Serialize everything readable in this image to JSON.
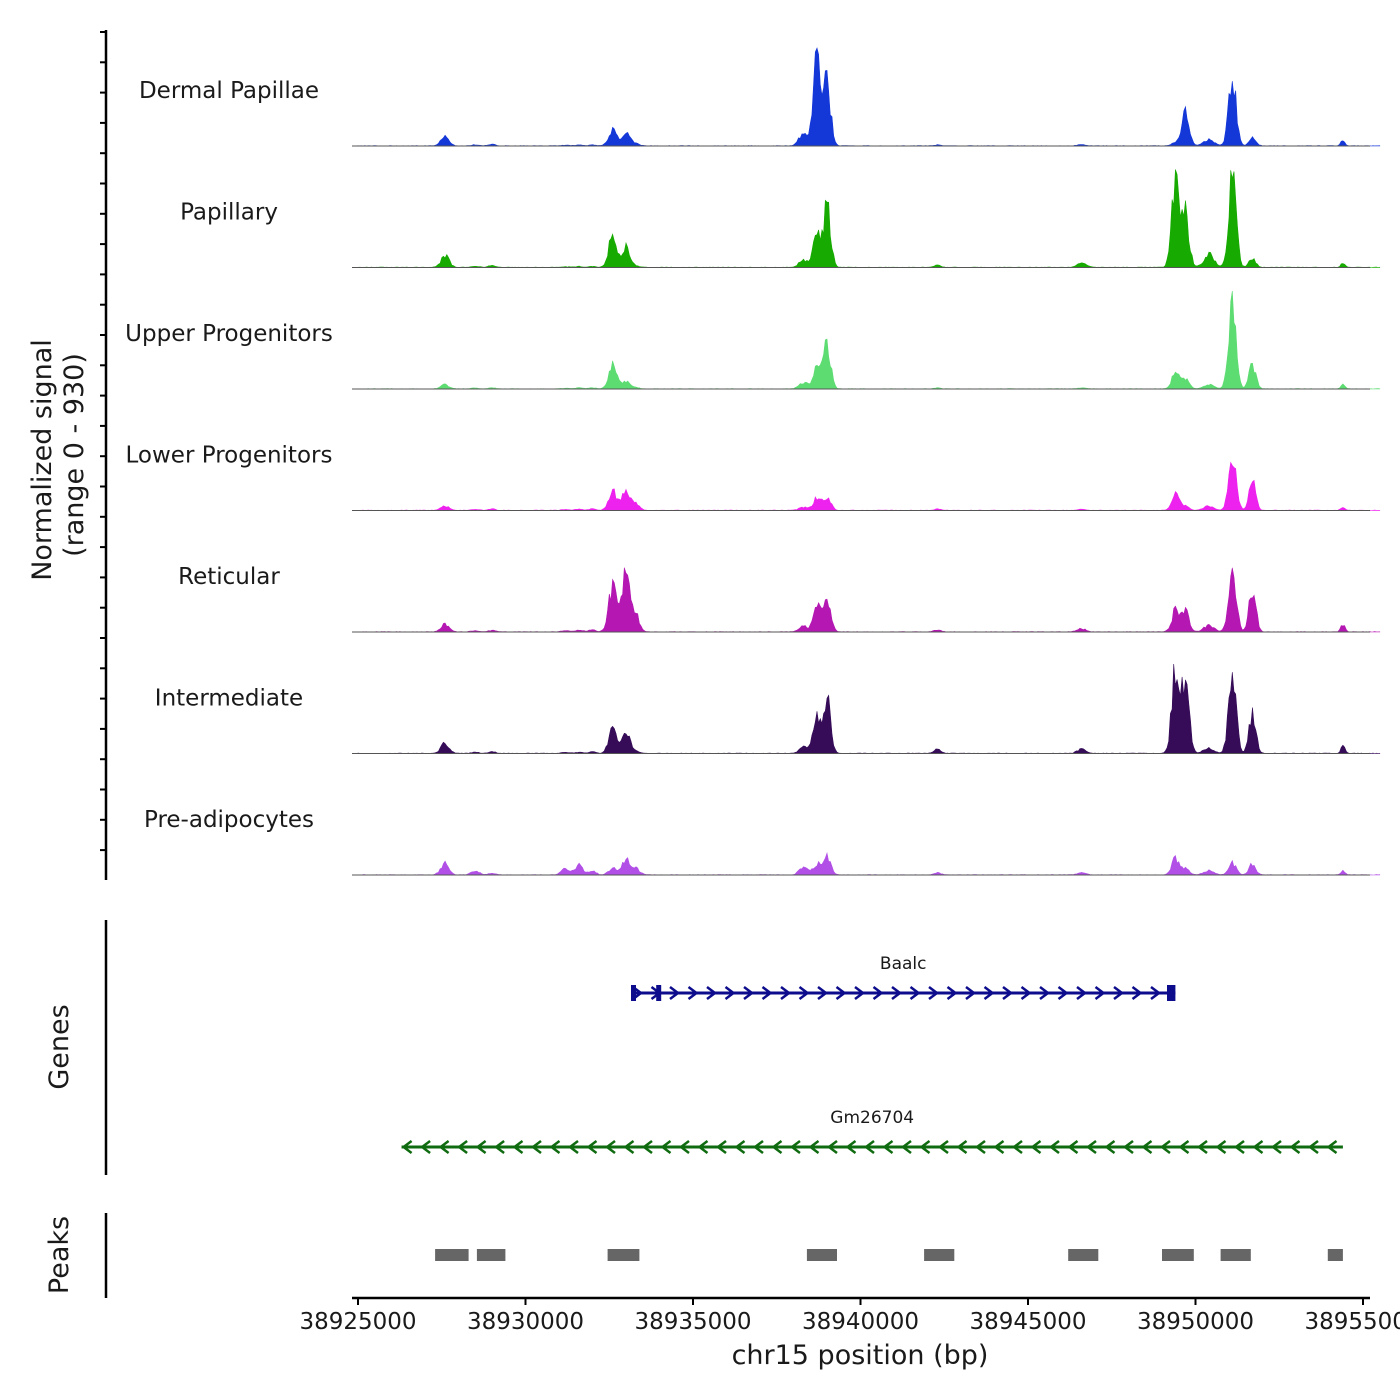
{
  "chart_data": {
    "type": "area",
    "title": "",
    "chromosome": "chr15",
    "xlabel": "chr15 position (bp)",
    "ylabel_line1": "Normalized signal",
    "ylabel_line2": "(range 0 - 930)",
    "signal_range": [
      0,
      930
    ],
    "xlim": [
      38925000,
      38956000
    ],
    "x_ticks": [
      38925000,
      38930000,
      38935000,
      38940000,
      38945000,
      38950000,
      38955000
    ],
    "x_tick_labels": [
      "38925000",
      "38930000",
      "38935000",
      "38940000",
      "38945000",
      "38950000",
      "38955000"
    ],
    "track_start": 38925000,
    "track_end": 38955500,
    "bin_bp": 50,
    "baseline_noise": 4,
    "peak_regions": [
      {
        "center": 38927600,
        "width": 120
      },
      {
        "center": 38928500,
        "width": 120
      },
      {
        "center": 38929000,
        "width": 100
      },
      {
        "center": 38931200,
        "width": 120
      },
      {
        "center": 38931600,
        "width": 120
      },
      {
        "center": 38932000,
        "width": 100
      },
      {
        "center": 38932600,
        "width": 120
      },
      {
        "center": 38933000,
        "width": 120
      },
      {
        "center": 38933300,
        "width": 110
      },
      {
        "center": 38938300,
        "width": 130
      },
      {
        "center": 38938700,
        "width": 110
      },
      {
        "center": 38939000,
        "width": 110
      },
      {
        "center": 38942300,
        "width": 100
      },
      {
        "center": 38946600,
        "width": 130
      },
      {
        "center": 38949400,
        "width": 110
      },
      {
        "center": 38949700,
        "width": 110
      },
      {
        "center": 38950400,
        "width": 150
      },
      {
        "center": 38951100,
        "width": 110
      },
      {
        "center": 38951700,
        "width": 100
      },
      {
        "center": 38954400,
        "width": 60
      }
    ],
    "series": [
      {
        "name": "Dermal Papillae",
        "color": "#1437d8",
        "heights": [
          90,
          10,
          15,
          5,
          8,
          8,
          150,
          120,
          20,
          120,
          850,
          580,
          10,
          10,
          30,
          300,
          60,
          680,
          70,
          50
        ]
      },
      {
        "name": "Papillary",
        "color": "#17aa00",
        "heights": [
          110,
          10,
          20,
          5,
          8,
          10,
          290,
          200,
          10,
          70,
          300,
          550,
          20,
          50,
          780,
          500,
          120,
          920,
          80,
          40
        ]
      },
      {
        "name": "Upper Progenitors",
        "color": "#5ddc72",
        "heights": [
          40,
          8,
          10,
          5,
          8,
          10,
          230,
          70,
          10,
          60,
          200,
          410,
          10,
          10,
          150,
          100,
          40,
          840,
          230,
          40
        ]
      },
      {
        "name": "Lower Progenitors",
        "color": "#ee22ee",
        "heights": [
          40,
          8,
          15,
          8,
          10,
          15,
          180,
          180,
          60,
          30,
          120,
          130,
          15,
          10,
          170,
          40,
          40,
          510,
          260,
          30
        ]
      },
      {
        "name": "Reticular",
        "color": "#b417b2",
        "heights": [
          70,
          10,
          15,
          10,
          15,
          20,
          420,
          610,
          150,
          50,
          250,
          320,
          20,
          30,
          200,
          190,
          60,
          620,
          420,
          70
        ]
      },
      {
        "name": "Intermediate",
        "color": "#360c58",
        "heights": [
          100,
          10,
          15,
          8,
          10,
          15,
          210,
          210,
          20,
          60,
          380,
          490,
          40,
          40,
          780,
          720,
          50,
          810,
          370,
          70
        ]
      },
      {
        "name": "Pre-adipocytes",
        "color": "#b14fe6",
        "heights": [
          110,
          40,
          15,
          60,
          90,
          40,
          60,
          140,
          60,
          70,
          100,
          170,
          20,
          20,
          150,
          60,
          40,
          110,
          100,
          40
        ]
      }
    ],
    "genes_label": "Genes",
    "genes": [
      {
        "name": "Baalc",
        "strand": "+",
        "start": 38933150,
        "end": 38949400,
        "color": "#0c0c8c",
        "exons": [
          {
            "start": 38933150,
            "end": 38933300
          },
          {
            "start": 38933900,
            "end": 38934050
          },
          {
            "start": 38949150,
            "end": 38949400
          }
        ]
      },
      {
        "name": "Gm26704",
        "strand": "-",
        "start": 38926300,
        "end": 38954400,
        "color": "#0f6b0f",
        "exons": []
      }
    ],
    "peaks_label": "Peaks",
    "peak_color": "#666666",
    "peaks": [
      {
        "start": 38927300,
        "end": 38928300
      },
      {
        "start": 38928550,
        "end": 38929400
      },
      {
        "start": 38932450,
        "end": 38933400
      },
      {
        "start": 38938400,
        "end": 38939300
      },
      {
        "start": 38941900,
        "end": 38942800
      },
      {
        "start": 38946200,
        "end": 38947100
      },
      {
        "start": 38949000,
        "end": 38949950
      },
      {
        "start": 38950750,
        "end": 38951650
      },
      {
        "start": 38953950,
        "end": 38954400
      }
    ]
  }
}
